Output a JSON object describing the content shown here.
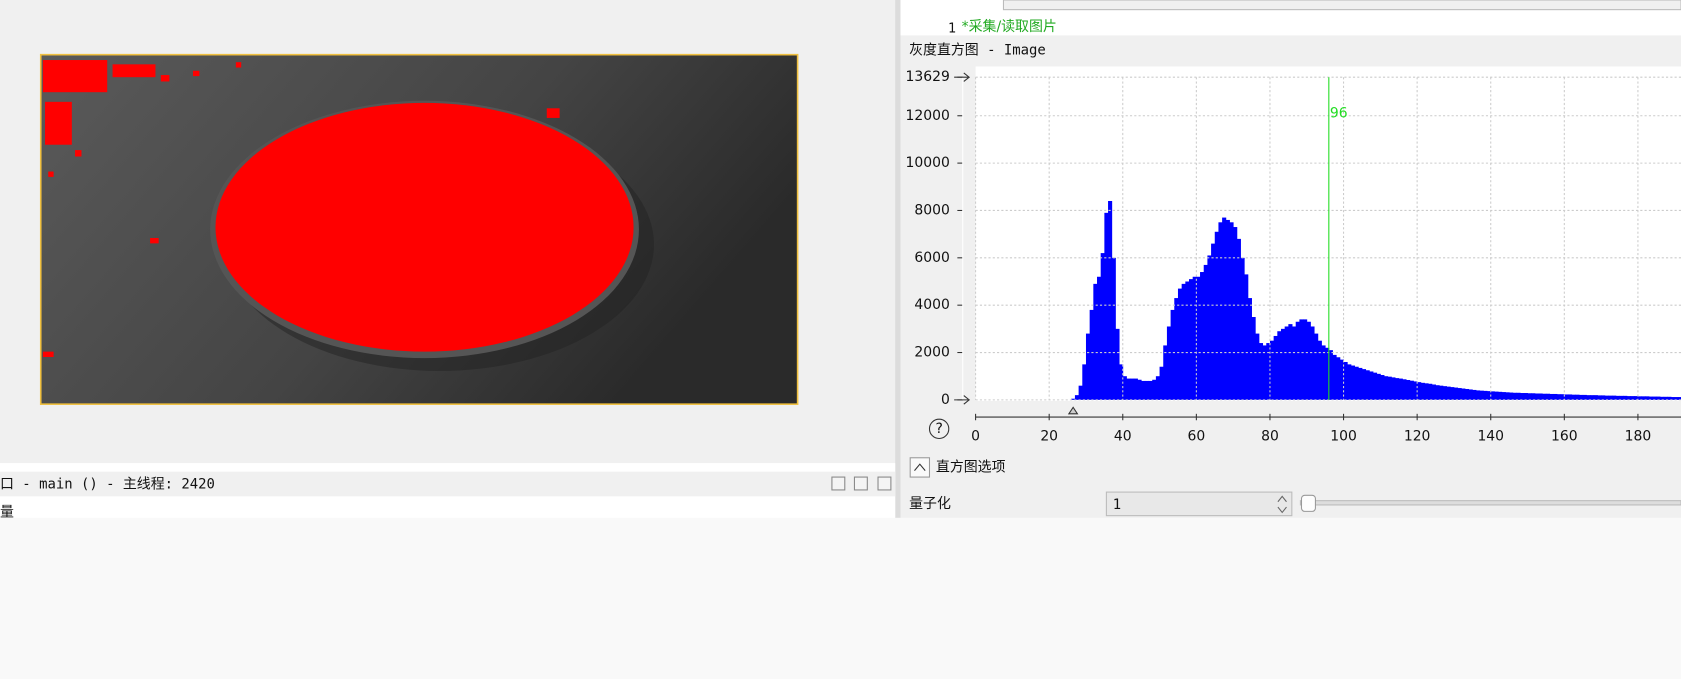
{
  "code_editor": {
    "line_number": 1,
    "line_text": "*采集/读取图片"
  },
  "histogram_panel": {
    "title": "灰度直方图 - Image"
  },
  "chart_data": {
    "type": "histogram",
    "color": "#0000ff",
    "bins": [
      0,
      1,
      2,
      3,
      4,
      5,
      6,
      7,
      8,
      9,
      10,
      11,
      12,
      13,
      14,
      15,
      16,
      17,
      18,
      19,
      20,
      21,
      22,
      23,
      24,
      25,
      26,
      27,
      28,
      29,
      30,
      31,
      32,
      33,
      34,
      35,
      36,
      37,
      38,
      39,
      40,
      41,
      42,
      43,
      44,
      45,
      46,
      47,
      48,
      49,
      50,
      51,
      52,
      53,
      54,
      55,
      56,
      57,
      58,
      59,
      60,
      61,
      62,
      63,
      64,
      65,
      66,
      67,
      68,
      69,
      70,
      71,
      72,
      73,
      74,
      75,
      76,
      77,
      78,
      79,
      80,
      81,
      82,
      83,
      84,
      85,
      86,
      87,
      88,
      89,
      90,
      91,
      92,
      93,
      94,
      95,
      96,
      97,
      98,
      99,
      100,
      101,
      102,
      103,
      104,
      105,
      106,
      107,
      108,
      109,
      110,
      111,
      112,
      113,
      114,
      115,
      116,
      117,
      118,
      119,
      120,
      121,
      122,
      123,
      124,
      125,
      126,
      127,
      128,
      129,
      130,
      131,
      132,
      133,
      134,
      135,
      136,
      137,
      138,
      139,
      140,
      141,
      142,
      143,
      144,
      145,
      146,
      147,
      148,
      149,
      150,
      151,
      152,
      153,
      154,
      155,
      156,
      157,
      158,
      159,
      160,
      161,
      162,
      163,
      164,
      165,
      166,
      167,
      168,
      169,
      170,
      171,
      172,
      173,
      174,
      175,
      176,
      177,
      178,
      179,
      180,
      181,
      182,
      183,
      184,
      185,
      186,
      187,
      188,
      189,
      190,
      191,
      192
    ],
    "values": [
      0,
      0,
      0,
      0,
      0,
      0,
      0,
      0,
      0,
      0,
      0,
      0,
      0,
      0,
      0,
      0,
      0,
      0,
      0,
      0,
      0,
      0,
      0,
      0,
      0,
      0,
      50,
      200,
      600,
      1500,
      2800,
      3800,
      4900,
      5200,
      6200,
      7900,
      8400,
      6000,
      3000,
      1500,
      1000,
      900,
      900,
      900,
      850,
      800,
      800,
      800,
      850,
      1000,
      1400,
      2300,
      3100,
      3800,
      4300,
      4700,
      4900,
      5000,
      5100,
      5200,
      5200,
      5400,
      5700,
      6100,
      6600,
      7100,
      7500,
      7700,
      7600,
      7500,
      7300,
      6800,
      6000,
      5300,
      4300,
      3500,
      2800,
      2400,
      2300,
      2400,
      2500,
      2700,
      2900,
      3000,
      3100,
      3200,
      3100,
      3300,
      3400,
      3400,
      3300,
      3100,
      2800,
      2500,
      2300,
      2200,
      2100,
      1900,
      1800,
      1700,
      1600,
      1500,
      1450,
      1400,
      1350,
      1300,
      1250,
      1200,
      1150,
      1100,
      1050,
      1000,
      980,
      950,
      920,
      900,
      870,
      840,
      810,
      780,
      750,
      720,
      700,
      680,
      650,
      620,
      600,
      580,
      560,
      540,
      520,
      500,
      480,
      460,
      440,
      420,
      400,
      390,
      380,
      370,
      360,
      350,
      340,
      330,
      320,
      310,
      300,
      300,
      290,
      290,
      280,
      280,
      270,
      270,
      260,
      260,
      250,
      250,
      240,
      240,
      230,
      230,
      220,
      220,
      210,
      210,
      200,
      200,
      200,
      190,
      190,
      180,
      180,
      180,
      170,
      170,
      170,
      160,
      160,
      160,
      150,
      150,
      150,
      140,
      140,
      140,
      130,
      130,
      130,
      120,
      120,
      120
    ],
    "xlim": [
      0,
      192
    ],
    "xticks": [
      0,
      20,
      40,
      60,
      80,
      100,
      120,
      140,
      160,
      180
    ],
    "ylim": [
      0,
      13629
    ],
    "yticks": [
      0,
      2000,
      4000,
      6000,
      8000,
      10000,
      12000,
      13629
    ],
    "grid": true,
    "threshold": 96,
    "threshold_color": "#22dd22"
  },
  "options": {
    "title": "直方图选项",
    "quantize_label": "量子化",
    "quantize_value": 1
  },
  "thread_bar": {
    "text": "口 - main () - 主线程: 2420",
    "next_line": "量"
  }
}
